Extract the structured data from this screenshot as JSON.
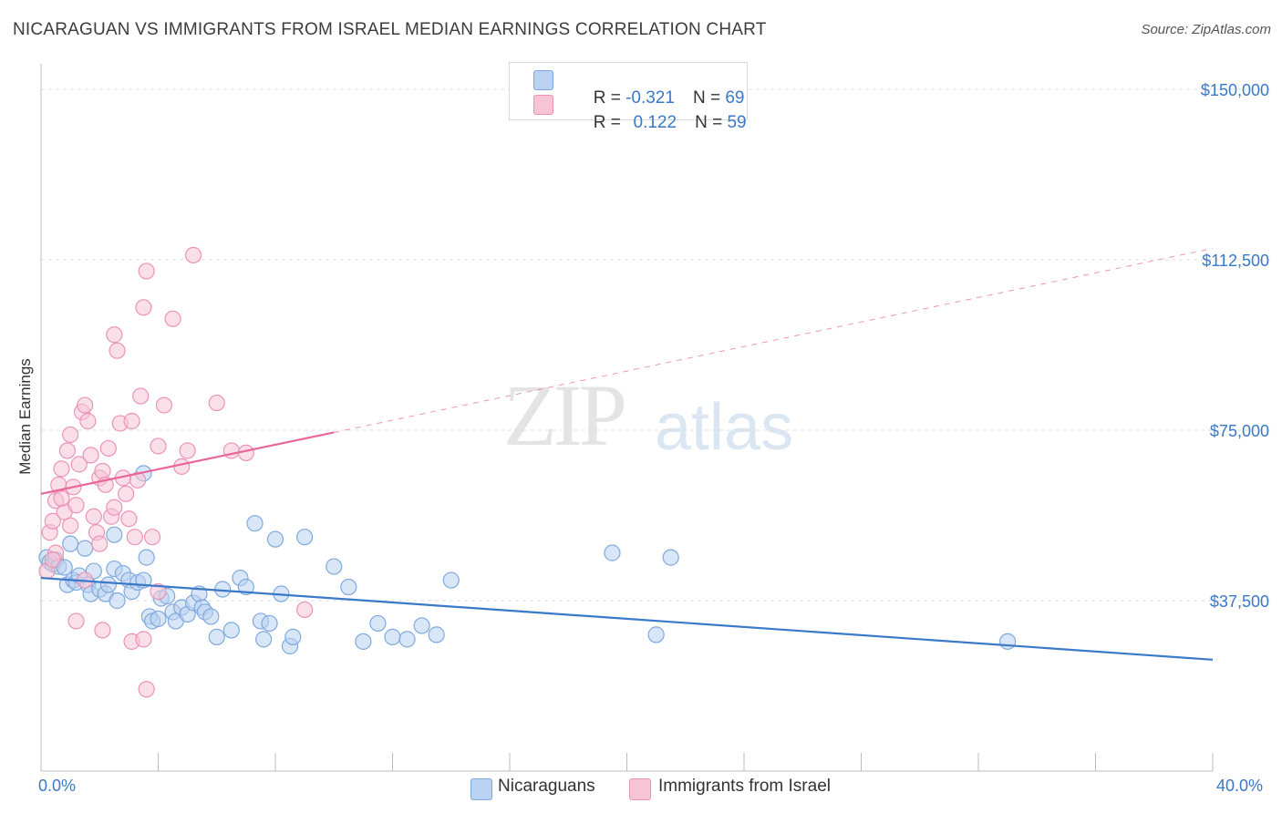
{
  "header": {
    "title": "NICARAGUAN VS IMMIGRANTS FROM ISRAEL MEDIAN EARNINGS CORRELATION CHART",
    "source": "Source: ZipAtlas.com"
  },
  "watermark": {
    "zip": "ZIP",
    "atlas": "atlas"
  },
  "colors": {
    "blue": "#3a78c9",
    "blue_fill": "#b9d2f1",
    "pink": "#e8679a",
    "pink_fill": "#f7c4d6",
    "grid": "#dcdcdc"
  },
  "legend_top": {
    "rows": [
      {
        "r_label": "R = ",
        "r_value": "-0.321",
        "n_label": "N = ",
        "n_value": "69"
      },
      {
        "r_label": "R = ",
        "r_value": "0.122",
        "n_label": "N = ",
        "n_value": "59"
      }
    ]
  },
  "legend_bottom": {
    "series_a": "Nicaraguans",
    "series_b": "Immigrants from Israel"
  },
  "chart_data": {
    "type": "scatter",
    "title": "NICARAGUAN VS IMMIGRANTS FROM ISRAEL MEDIAN EARNINGS CORRELATION CHART",
    "xlabel": "",
    "ylabel": "Median Earnings",
    "xlim": [
      0,
      40
    ],
    "ylim": [
      0,
      154000
    ],
    "x_tick_labels": [
      "0.0%",
      "40.0%"
    ],
    "y_ticks": [
      37500,
      75000,
      112500,
      150000
    ],
    "y_tick_labels": [
      "$37,500",
      "$75,000",
      "$112,500",
      "$150,000"
    ],
    "grid": true,
    "legend_position": "bottom-center",
    "series": [
      {
        "name": "Nicaraguans",
        "color": "#3a78c9",
        "r": -0.321,
        "n": 69,
        "trend": {
          "x": [
            0,
            40
          ],
          "y": [
            42500,
            24500
          ],
          "style": "solid"
        },
        "points": [
          [
            0.2,
            47000
          ],
          [
            0.3,
            46000
          ],
          [
            0.4,
            45500
          ],
          [
            0.5,
            46500
          ],
          [
            0.6,
            45000
          ],
          [
            0.8,
            44800
          ],
          [
            0.9,
            41000
          ],
          [
            1.0,
            50000
          ],
          [
            1.1,
            42000
          ],
          [
            1.2,
            41500
          ],
          [
            1.3,
            43000
          ],
          [
            1.5,
            49000
          ],
          [
            1.6,
            41000
          ],
          [
            1.7,
            39000
          ],
          [
            1.8,
            44000
          ],
          [
            2.0,
            40000
          ],
          [
            2.2,
            39000
          ],
          [
            2.3,
            41000
          ],
          [
            2.5,
            44500
          ],
          [
            2.6,
            37500
          ],
          [
            2.8,
            43500
          ],
          [
            3.0,
            42000
          ],
          [
            3.1,
            39500
          ],
          [
            3.3,
            41500
          ],
          [
            3.5,
            42000
          ],
          [
            3.6,
            47000
          ],
          [
            3.7,
            34000
          ],
          [
            3.8,
            33000
          ],
          [
            4.0,
            33500
          ],
          [
            4.1,
            38000
          ],
          [
            4.3,
            38500
          ],
          [
            4.5,
            35000
          ],
          [
            4.6,
            33000
          ],
          [
            4.8,
            36000
          ],
          [
            5.0,
            34500
          ],
          [
            5.2,
            37000
          ],
          [
            5.4,
            39000
          ],
          [
            5.5,
            36000
          ],
          [
            5.6,
            35000
          ],
          [
            5.8,
            34000
          ],
          [
            6.0,
            29500
          ],
          [
            6.2,
            40000
          ],
          [
            6.5,
            31000
          ],
          [
            6.8,
            42500
          ],
          [
            7.0,
            40500
          ],
          [
            7.3,
            54500
          ],
          [
            7.5,
            33000
          ],
          [
            7.6,
            29000
          ],
          [
            7.8,
            32500
          ],
          [
            8.0,
            51000
          ],
          [
            8.2,
            39000
          ],
          [
            8.5,
            27500
          ],
          [
            8.6,
            29500
          ],
          [
            9.0,
            51500
          ],
          [
            10.0,
            45000
          ],
          [
            10.5,
            40500
          ],
          [
            11.0,
            28500
          ],
          [
            11.5,
            32500
          ],
          [
            12.0,
            29500
          ],
          [
            12.5,
            29000
          ],
          [
            13.0,
            32000
          ],
          [
            13.5,
            30000
          ],
          [
            14.0,
            42000
          ],
          [
            19.5,
            48000
          ],
          [
            21.0,
            30000
          ],
          [
            21.5,
            47000
          ],
          [
            33.0,
            28500
          ],
          [
            2.5,
            52000
          ],
          [
            3.5,
            65500
          ]
        ]
      },
      {
        "name": "Immigrants from Israel",
        "color": "#e8679a",
        "r": 0.122,
        "n": 59,
        "trend": {
          "x": [
            0,
            10
          ],
          "y": [
            61000,
            74500
          ],
          "style": "solid"
        },
        "trend_extension": {
          "x": [
            10,
            40
          ],
          "y": [
            74500,
            115000
          ],
          "style": "dashed"
        },
        "points": [
          [
            0.2,
            44000
          ],
          [
            0.3,
            52500
          ],
          [
            0.4,
            55000
          ],
          [
            0.5,
            59500
          ],
          [
            0.6,
            63000
          ],
          [
            0.7,
            66500
          ],
          [
            0.8,
            57000
          ],
          [
            0.9,
            70500
          ],
          [
            1.0,
            74000
          ],
          [
            1.1,
            62500
          ],
          [
            1.2,
            58500
          ],
          [
            1.3,
            67500
          ],
          [
            1.4,
            79000
          ],
          [
            1.5,
            80500
          ],
          [
            1.6,
            77000
          ],
          [
            1.7,
            69500
          ],
          [
            1.8,
            56000
          ],
          [
            1.9,
            52500
          ],
          [
            2.0,
            64500
          ],
          [
            2.1,
            66000
          ],
          [
            2.2,
            63000
          ],
          [
            2.3,
            71000
          ],
          [
            2.4,
            56000
          ],
          [
            2.5,
            96000
          ],
          [
            2.6,
            92500
          ],
          [
            2.7,
            76500
          ],
          [
            2.8,
            64500
          ],
          [
            2.9,
            61000
          ],
          [
            3.0,
            55500
          ],
          [
            3.1,
            77000
          ],
          [
            3.2,
            51500
          ],
          [
            3.3,
            64000
          ],
          [
            3.4,
            82500
          ],
          [
            3.5,
            102000
          ],
          [
            3.6,
            110000
          ],
          [
            3.8,
            51500
          ],
          [
            4.0,
            71500
          ],
          [
            4.2,
            80500
          ],
          [
            4.5,
            99500
          ],
          [
            4.8,
            67000
          ],
          [
            5.0,
            70500
          ],
          [
            5.2,
            113500
          ],
          [
            6.0,
            81000
          ],
          [
            6.5,
            70500
          ],
          [
            7.0,
            70000
          ],
          [
            0.5,
            48000
          ],
          [
            1.2,
            33000
          ],
          [
            2.1,
            31000
          ],
          [
            3.1,
            28500
          ],
          [
            3.5,
            29000
          ],
          [
            3.6,
            18000
          ],
          [
            9.0,
            35500
          ],
          [
            0.4,
            46500
          ],
          [
            0.7,
            60000
          ],
          [
            1.5,
            42000
          ],
          [
            2.0,
            50000
          ],
          [
            4.0,
            39500
          ],
          [
            1.0,
            54000
          ],
          [
            2.5,
            58000
          ]
        ]
      }
    ]
  }
}
